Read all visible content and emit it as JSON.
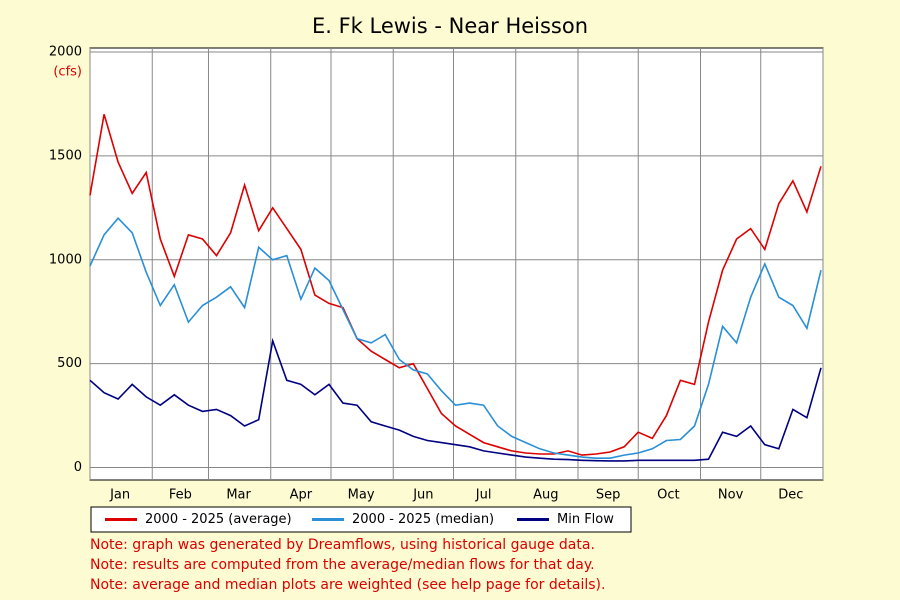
{
  "chart_data": {
    "type": "line",
    "title": "E. Fk Lewis - Near Heisson",
    "y_unit": "(cfs)",
    "x": [
      1,
      8,
      15,
      22,
      29,
      36,
      43,
      50,
      57,
      64,
      71,
      78,
      85,
      92,
      99,
      106,
      113,
      120,
      127,
      134,
      141,
      148,
      155,
      162,
      169,
      176,
      183,
      190,
      197,
      204,
      211,
      218,
      225,
      232,
      239,
      246,
      253,
      260,
      267,
      274,
      281,
      288,
      295,
      302,
      309,
      316,
      323,
      330,
      337,
      344,
      351,
      358,
      365
    ],
    "series": [
      {
        "name": "2000 - 2025 (average)",
        "color": "#dd0000",
        "values": [
          1310,
          1700,
          1470,
          1320,
          1420,
          1100,
          920,
          1120,
          1100,
          1020,
          1130,
          1360,
          1140,
          1250,
          1150,
          1050,
          830,
          790,
          770,
          620,
          560,
          520,
          480,
          500,
          380,
          260,
          200,
          160,
          120,
          100,
          80,
          70,
          65,
          65,
          80,
          60,
          65,
          75,
          100,
          170,
          140,
          250,
          420,
          400,
          700,
          950,
          1100,
          1150,
          1050,
          1270,
          1380,
          1230,
          1450
        ]
      },
      {
        "name": "2000 - 2025 (median)",
        "color": "#2a8fd6",
        "values": [
          970,
          1120,
          1200,
          1130,
          940,
          780,
          880,
          700,
          780,
          820,
          870,
          770,
          1060,
          1000,
          1020,
          810,
          960,
          900,
          760,
          620,
          600,
          640,
          520,
          470,
          450,
          370,
          300,
          310,
          300,
          200,
          150,
          120,
          90,
          70,
          60,
          50,
          45,
          45,
          60,
          70,
          90,
          130,
          135,
          200,
          400,
          680,
          600,
          820,
          980,
          820,
          780,
          670,
          950
        ]
      },
      {
        "name": "Min Flow",
        "color": "#000080",
        "values": [
          420,
          360,
          330,
          400,
          340,
          300,
          350,
          300,
          270,
          280,
          250,
          200,
          230,
          610,
          420,
          400,
          350,
          400,
          310,
          300,
          220,
          200,
          180,
          150,
          130,
          120,
          110,
          100,
          80,
          70,
          60,
          50,
          45,
          40,
          38,
          35,
          33,
          32,
          32,
          35,
          35,
          35,
          35,
          35,
          40,
          170,
          150,
          200,
          110,
          90,
          280,
          240,
          480
        ]
      }
    ],
    "xlim": [
      1,
      366
    ],
    "xticks": [
      {
        "value": 16,
        "label": "Jan"
      },
      {
        "value": 46,
        "label": "Feb"
      },
      {
        "value": 75,
        "label": "Mar"
      },
      {
        "value": 106,
        "label": "Apr"
      },
      {
        "value": 136,
        "label": "May"
      },
      {
        "value": 167,
        "label": "Jun"
      },
      {
        "value": 197,
        "label": "Jul"
      },
      {
        "value": 228,
        "label": "Aug"
      },
      {
        "value": 259,
        "label": "Sep"
      },
      {
        "value": 289,
        "label": "Oct"
      },
      {
        "value": 320,
        "label": "Nov"
      },
      {
        "value": 350,
        "label": "Dec"
      }
    ],
    "xgrid": [
      1,
      32,
      60,
      91,
      121,
      152,
      182,
      213,
      244,
      274,
      305,
      335,
      366
    ],
    "ylim": [
      -60,
      2000
    ],
    "yticks": [
      0,
      500,
      1000,
      1500,
      2000
    ],
    "grid": true,
    "notes": [
      "Note: graph was generated by Dreamflows, using historical gauge data.",
      "Note: results are computed from the average/median flows for that day.",
      "Note: average and median plots are weighted (see help page for details)."
    ]
  }
}
